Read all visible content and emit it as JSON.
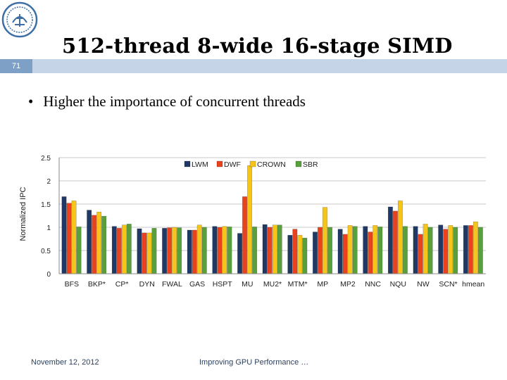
{
  "slide": {
    "number": "71",
    "title": "512-thread 8-wide 16-stage SIMD",
    "bullet": "Higher the importance of concurrent threads",
    "footer_date": "November 12, 2012",
    "footer_title": "Improving GPU Performance …"
  },
  "colors": {
    "band": "#c5d4e6",
    "slide_number_bg": "#7fa0c6",
    "logo": "#3d6fa6"
  },
  "chart_data": {
    "type": "bar",
    "title": "",
    "xlabel": "",
    "ylabel": "Normalized IPC",
    "ylim": [
      0,
      2.5
    ],
    "yticks": [
      0,
      0.5,
      1,
      1.5,
      2,
      2.5
    ],
    "ytick_labels": [
      "0",
      "0.5",
      "1",
      "1.5",
      "2",
      "2.5"
    ],
    "grid": true,
    "legend_position": "top",
    "categories": [
      "BFS",
      "BKP*",
      "CP*",
      "DYN",
      "FWAL",
      "GAS",
      "HSPT",
      "MU",
      "MU2*",
      "MTM*",
      "MP",
      "MP2",
      "NNC",
      "NQU",
      "NW",
      "SCN*",
      "hmean"
    ],
    "series": [
      {
        "name": "LWM",
        "color": "#1f3864",
        "values": [
          1.66,
          1.37,
          1.02,
          0.97,
          0.98,
          0.94,
          1.02,
          0.87,
          1.06,
          0.83,
          0.9,
          0.96,
          1.02,
          1.44,
          1.02,
          1.05,
          1.04
        ]
      },
      {
        "name": "DWF",
        "color": "#e8431e",
        "values": [
          1.52,
          1.26,
          0.98,
          0.88,
          0.99,
          0.94,
          1.0,
          1.66,
          1.0,
          0.96,
          1.0,
          0.85,
          0.9,
          1.35,
          0.85,
          0.96,
          1.04
        ]
      },
      {
        "name": "CROWN",
        "color": "#f6c51b",
        "values": [
          1.57,
          1.33,
          1.05,
          0.88,
          1.0,
          1.05,
          1.02,
          2.33,
          1.05,
          0.83,
          1.43,
          1.04,
          1.04,
          1.57,
          1.07,
          1.04,
          1.12
        ]
      },
      {
        "name": "SBR",
        "color": "#57a03b",
        "values": [
          1.01,
          1.24,
          1.07,
          0.98,
          0.99,
          1.0,
          1.01,
          1.01,
          1.05,
          0.77,
          1.0,
          1.02,
          1.01,
          1.02,
          1.0,
          1.0,
          1.0
        ]
      }
    ]
  }
}
